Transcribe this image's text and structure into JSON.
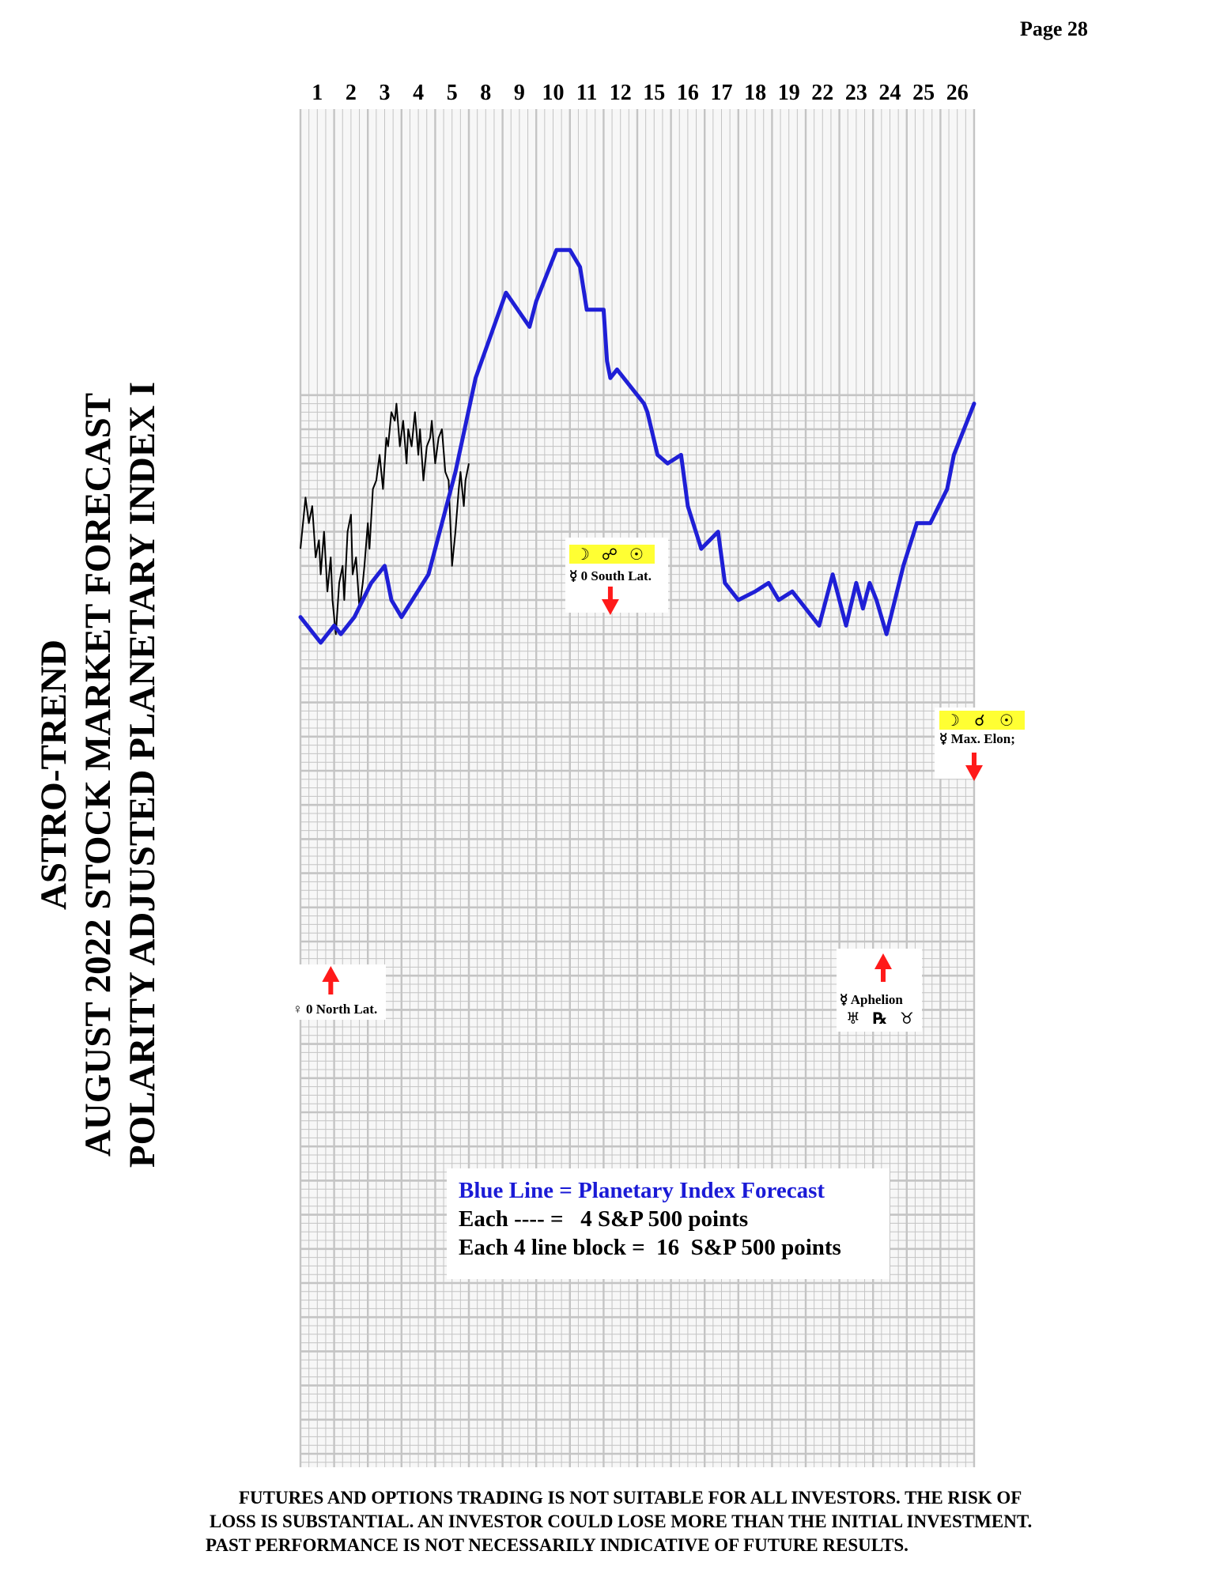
{
  "page_number": "Page  28",
  "side_title": [
    "ASTRO-TREND",
    "AUGUST 2022  STOCK MARKET FORECAST",
    "POLARITY ADJUSTED PLANETARY INDEX I"
  ],
  "legend": {
    "line1": "Blue Line = Planetary Index Forecast",
    "line2": "Each ---- =   4 S&P 500 points",
    "line3": "Each 4 line block =  16  S&P 500 points"
  },
  "disclaimer": [
    "FUTURES AND OPTIONS TRADING IS NOT SUITABLE FOR ALL INVESTORS.  THE RISK OF",
    "LOSS IS SUBSTANTIAL.  AN INVESTOR COULD LOSE MORE THAN THE INITIAL INVESTMENT.",
    "PAST PERFORMANCE IS NOT NECESSARILY INDICATIVE OF FUTURE RESULTS."
  ],
  "colors": {
    "forecast_line": "#1f1fd6",
    "actual_line": "#000000",
    "grid": "#c4c4c4",
    "arrow": "#ff1a1a",
    "glyph_highlight": "#ffff33"
  },
  "chart_data": {
    "type": "line",
    "title": "",
    "xlabel": "",
    "ylabel": "",
    "grid": true,
    "x_tick_labels": [
      "1",
      "2",
      "3",
      "4",
      "5",
      "8",
      "9",
      "10",
      "11",
      "12",
      "15",
      "16",
      "17",
      "18",
      "19",
      "22",
      "23",
      "24",
      "25",
      "26"
    ],
    "series": [
      {
        "name": "Blue Line = Planetary Index Forecast",
        "x_day_index": [
          0,
          0.6,
          1.0,
          1.2,
          1.6,
          2.1,
          2.5,
          2.7,
          3.0,
          3.8,
          4.6,
          5.2,
          6.1,
          6.8,
          7.0,
          7.6,
          8.0,
          8.3,
          8.5,
          9.0,
          9.1,
          9.2,
          9.4,
          10.0,
          10.2,
          10.3,
          10.6,
          10.9,
          11.3,
          11.5,
          11.9,
          12.4,
          12.6,
          13.0,
          13.5,
          13.9,
          14.2,
          14.6,
          15.0,
          15.4,
          15.8,
          16.2,
          16.5,
          16.7,
          16.9,
          17.1,
          17.4,
          17.9,
          18.3,
          18.7,
          19.2,
          19.4,
          20.0
        ],
        "values": [
          38,
          35,
          37,
          36,
          38,
          42,
          44,
          40,
          38,
          43,
          55,
          66,
          76,
          72,
          75,
          81,
          81,
          79,
          74,
          74,
          68,
          66,
          67,
          64,
          63,
          62,
          57,
          56,
          57,
          51,
          46,
          48,
          42,
          40,
          41,
          42,
          40,
          41,
          39,
          37,
          43,
          37,
          42,
          39,
          42,
          40,
          36,
          44,
          49,
          49,
          53,
          57,
          63
        ]
      },
      {
        "name": "",
        "x_day_index": [
          0,
          0.1,
          0.15,
          0.25,
          0.35,
          0.45,
          0.55,
          0.6,
          0.7,
          0.8,
          0.9,
          0.95,
          1.05,
          1.15,
          1.25,
          1.3,
          1.4,
          1.5,
          1.55,
          1.65,
          1.75,
          1.85,
          1.9,
          2.0,
          2.05,
          2.15,
          2.25,
          2.35,
          2.45,
          2.55,
          2.6,
          2.7,
          2.8,
          2.85,
          2.95,
          3.05,
          3.15,
          3.2,
          3.3,
          3.4,
          3.5,
          3.55,
          3.65,
          3.75,
          3.85,
          3.9,
          4.0,
          4.1,
          4.2,
          4.3,
          4.4,
          4.5,
          4.6,
          4.7,
          4.75,
          4.85,
          4.9,
          5.0
        ],
        "values": [
          46,
          50,
          52,
          49,
          51,
          45,
          47,
          43,
          48,
          41,
          45,
          40,
          36,
          42,
          44,
          40,
          48,
          50,
          43,
          45,
          39,
          42,
          44,
          49,
          46,
          53,
          54,
          57,
          53,
          59,
          58,
          62,
          61,
          63,
          58,
          61,
          56,
          60,
          58,
          62,
          57,
          60,
          54,
          58,
          59,
          61,
          56,
          59,
          60,
          55,
          54,
          44,
          48,
          53,
          55,
          51,
          54,
          56
        ]
      }
    ],
    "annotations": [
      {
        "glyphs": [],
        "text": "♀ 0 North Lat.",
        "extra_glyphs": [],
        "direction": "up",
        "x_day_index": 0.9
      },
      {
        "glyphs": [
          "☽",
          "☍",
          "☉"
        ],
        "text": "☿ 0 South Lat.",
        "extra_glyphs": [],
        "direction": "down",
        "x_day_index": 9.2
      },
      {
        "glyphs": [],
        "text": "☿ Aphelion",
        "extra_glyphs": [
          "♅",
          "℞",
          "♉"
        ],
        "direction": "up",
        "x_day_index": 17.3
      },
      {
        "glyphs": [
          "☽",
          "☌",
          "☉"
        ],
        "text": "☿ Max. Elon;",
        "extra_glyphs": [],
        "direction": "down",
        "x_day_index": 20.0
      }
    ]
  }
}
